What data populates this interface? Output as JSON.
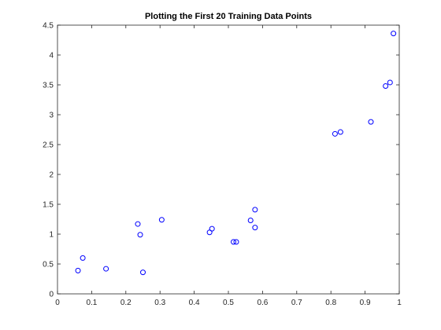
{
  "chart_data": {
    "type": "scatter",
    "title": "Plotting the First 20 Training Data Points",
    "xlabel": "",
    "ylabel": "",
    "xlim": [
      0,
      1
    ],
    "ylim": [
      0,
      4.5
    ],
    "xticks": [
      0,
      0.1,
      0.2,
      0.3,
      0.4,
      0.5,
      0.6,
      0.7,
      0.8,
      0.9,
      1
    ],
    "xtick_labels": [
      "0",
      "0.1",
      "0.2",
      "0.3",
      "0.4",
      "0.5",
      "0.6",
      "0.7",
      "0.8",
      "0.9",
      "1"
    ],
    "yticks": [
      0,
      0.5,
      1,
      1.5,
      2,
      2.5,
      3,
      3.5,
      4,
      4.5
    ],
    "ytick_labels": [
      "0",
      "0.5",
      "1",
      "1.5",
      "2",
      "2.5",
      "3",
      "3.5",
      "4",
      "4.5"
    ],
    "grid": false,
    "marker": "circle-open",
    "color": "#0000ff",
    "series": [
      {
        "points": [
          {
            "x": 0.06,
            "y": 0.39
          },
          {
            "x": 0.074,
            "y": 0.6
          },
          {
            "x": 0.142,
            "y": 0.42
          },
          {
            "x": 0.235,
            "y": 1.17
          },
          {
            "x": 0.242,
            "y": 0.99
          },
          {
            "x": 0.25,
            "y": 0.36
          },
          {
            "x": 0.305,
            "y": 1.24
          },
          {
            "x": 0.445,
            "y": 1.03
          },
          {
            "x": 0.452,
            "y": 1.09
          },
          {
            "x": 0.515,
            "y": 0.87
          },
          {
            "x": 0.523,
            "y": 0.87
          },
          {
            "x": 0.565,
            "y": 1.23
          },
          {
            "x": 0.578,
            "y": 1.41
          },
          {
            "x": 0.578,
            "y": 1.11
          },
          {
            "x": 0.812,
            "y": 2.68
          },
          {
            "x": 0.828,
            "y": 2.71
          },
          {
            "x": 0.917,
            "y": 2.88
          },
          {
            "x": 0.96,
            "y": 3.48
          },
          {
            "x": 0.973,
            "y": 3.54
          },
          {
            "x": 0.983,
            "y": 4.36
          }
        ]
      }
    ]
  }
}
